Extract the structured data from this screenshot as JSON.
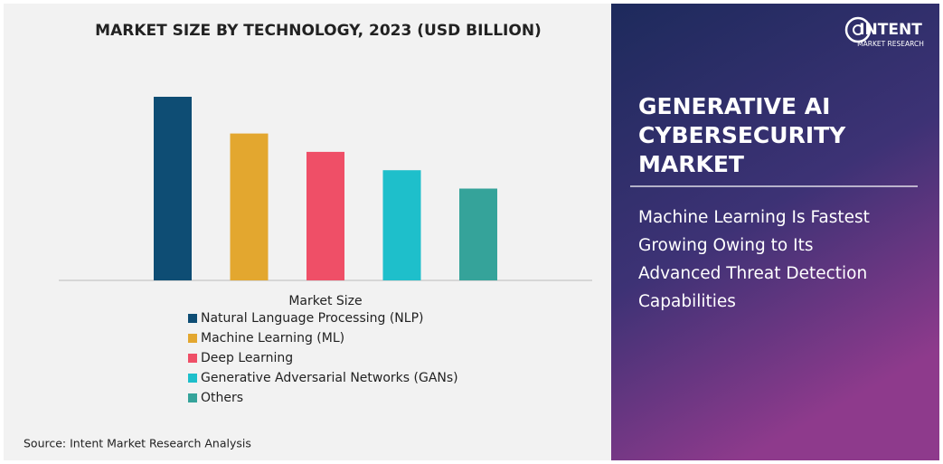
{
  "chart_data": {
    "type": "bar",
    "title": "MARKET SIZE BY TECHNOLOGY, 2023 (USD BILLION)",
    "categories": [
      "Natural Language Processing (NLP)",
      "Machine Learning (ML)",
      "Deep Learning",
      "Generative Adversarial Networks (GANs)",
      "Others"
    ],
    "values": [
      10,
      8,
      7,
      6,
      5
    ],
    "colors": [
      "#0e4d74",
      "#e3a72f",
      "#ef4f67",
      "#1ebfcb",
      "#35a39a"
    ],
    "legend_title": "Market Size",
    "source": "Source: Intent Market Research Analysis"
  },
  "brand": {
    "name": "INTENT",
    "tagline": "MARKET RESEARCH"
  },
  "headline": [
    "GENERATIVE AI",
    "CYBERSECURITY",
    "MARKET"
  ],
  "subheadline": [
    "Machine Learning Is Fastest",
    "Growing Owing to Its",
    "Advanced Threat Detection",
    "Capabilities"
  ]
}
